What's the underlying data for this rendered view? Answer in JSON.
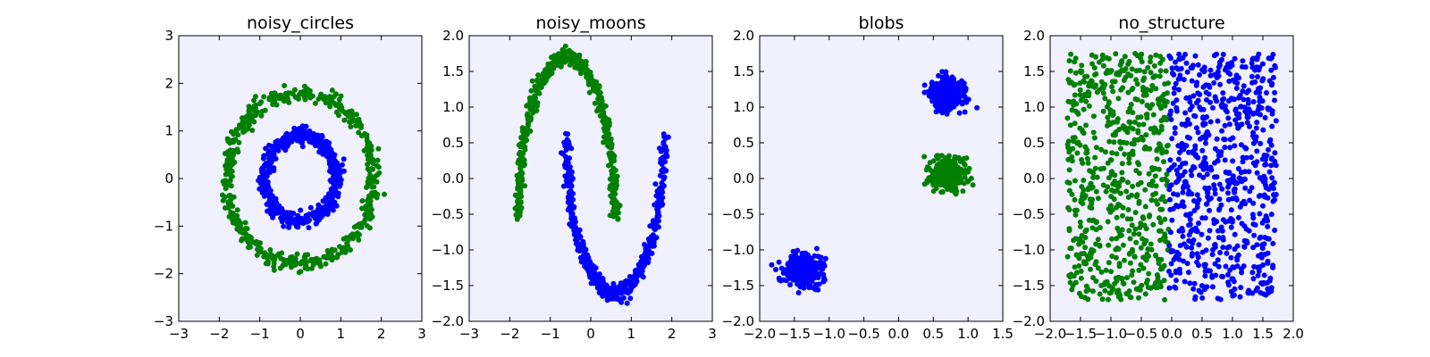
{
  "figure": {
    "plot_background": "#f0f0ff"
  },
  "chart_data": [
    {
      "type": "scatter",
      "title": "noisy_circles",
      "xlabel": "",
      "ylabel": "",
      "xlim": [
        -3,
        3
      ],
      "ylim": [
        -3,
        3
      ],
      "xticks": [
        -3,
        -2,
        -1,
        0,
        1,
        2,
        3
      ],
      "yticks": [
        -3,
        -2,
        -1,
        0,
        1,
        2,
        3
      ],
      "xtick_labels": [
        "−3",
        "−2",
        "−1",
        "0",
        "1",
        "2",
        "3"
      ],
      "ytick_labels": [
        "−3",
        "−2",
        "−1",
        "0",
        "1",
        "2",
        "3"
      ],
      "grid": false,
      "series": [
        {
          "color": "#008000",
          "shape": "ring",
          "center": [
            0,
            0
          ],
          "radius": 1.8,
          "noise": 0.08,
          "count": 500
        },
        {
          "color": "#0000ff",
          "shape": "ring",
          "center": [
            0,
            0
          ],
          "radius": 0.9,
          "noise": 0.08,
          "count": 500
        }
      ]
    },
    {
      "type": "scatter",
      "title": "noisy_moons",
      "xlabel": "",
      "ylabel": "",
      "xlim": [
        -3,
        3
      ],
      "ylim": [
        -2,
        2
      ],
      "xticks": [
        -3,
        -2,
        -1,
        0,
        1,
        2,
        3
      ],
      "yticks": [
        -2,
        -1.5,
        -1,
        -0.5,
        0,
        0.5,
        1,
        1.5,
        2
      ],
      "xtick_labels": [
        "−3",
        "−2",
        "−1",
        "0",
        "1",
        "2",
        "3"
      ],
      "ytick_labels": [
        "−2.0",
        "−1.5",
        "−1.0",
        "−0.5",
        "0.0",
        "0.5",
        "1.0",
        "1.5",
        "2.0"
      ],
      "grid": false,
      "series": [
        {
          "color": "#008000",
          "shape": "upper-moon",
          "x_range": [
            -1.8,
            0.6
          ],
          "y_range": [
            -0.6,
            1.7
          ],
          "count": 500
        },
        {
          "color": "#0000ff",
          "shape": "lower-moon",
          "x_range": [
            -0.6,
            1.8
          ],
          "y_range": [
            -1.6,
            0.6
          ],
          "count": 500
        }
      ]
    },
    {
      "type": "scatter",
      "title": "blobs",
      "xlabel": "",
      "ylabel": "",
      "xlim": [
        -2,
        1.5
      ],
      "ylim": [
        -2,
        2
      ],
      "xticks": [
        -2,
        -1.5,
        -1,
        -0.5,
        0,
        0.5,
        1,
        1.5
      ],
      "yticks": [
        -2,
        -1.5,
        -1,
        -0.5,
        0,
        0.5,
        1,
        1.5,
        2
      ],
      "xtick_labels": [
        "−2.0",
        "−1.5",
        "−1.0",
        "−0.5",
        "0.0",
        "0.5",
        "1.0",
        "1.5"
      ],
      "ytick_labels": [
        "−2.0",
        "−1.5",
        "−1.0",
        "−0.5",
        "0.0",
        "0.5",
        "1.0",
        "1.5",
        "2.0"
      ],
      "grid": false,
      "series": [
        {
          "color": "#0000ff",
          "shape": "blob",
          "center": [
            0.7,
            1.2
          ],
          "spread": 0.13,
          "count": 340
        },
        {
          "color": "#008000",
          "shape": "blob",
          "center": [
            0.7,
            0.05
          ],
          "spread": 0.13,
          "count": 340
        },
        {
          "color": "#0000ff",
          "shape": "blob",
          "center": [
            -1.38,
            -1.27
          ],
          "spread": 0.13,
          "count": 340
        }
      ]
    },
    {
      "type": "scatter",
      "title": "no_structure",
      "xlabel": "",
      "ylabel": "",
      "xlim": [
        -2,
        2
      ],
      "ylim": [
        -2,
        2
      ],
      "xticks": [
        -2,
        -1.5,
        -1,
        -0.5,
        0,
        0.5,
        1,
        1.5,
        2
      ],
      "yticks": [
        -2,
        -1.5,
        -1,
        -0.5,
        0,
        0.5,
        1,
        1.5,
        2
      ],
      "xtick_labels": [
        "−2.0",
        "−1.5",
        "−1.0",
        "−0.5",
        "0.0",
        "0.5",
        "1.0",
        "1.5",
        "2.0"
      ],
      "ytick_labels": [
        "−2.0",
        "−1.5",
        "−1.0",
        "−0.5",
        "0.0",
        "0.5",
        "1.0",
        "1.5",
        "2.0"
      ],
      "grid": false,
      "series": [
        {
          "color": "#008000",
          "shape": "uniform",
          "x_range": [
            -1.72,
            -0.05
          ],
          "y_range": [
            -1.7,
            1.75
          ],
          "count": 650
        },
        {
          "color": "#0000ff",
          "shape": "uniform",
          "x_range": [
            -0.05,
            1.72
          ],
          "y_range": [
            -1.7,
            1.75
          ],
          "count": 700
        }
      ]
    }
  ]
}
